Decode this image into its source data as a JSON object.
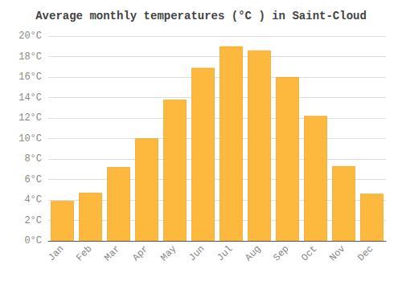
{
  "chart_data": {
    "type": "bar",
    "title": "Average monthly temperatures (°C ) in Saint-Cloud",
    "categories": [
      "Jan",
      "Feb",
      "Mar",
      "Apr",
      "May",
      "Jun",
      "Jul",
      "Aug",
      "Sep",
      "Oct",
      "Nov",
      "Dec"
    ],
    "values": [
      3.9,
      4.7,
      7.2,
      10.0,
      13.8,
      16.9,
      19.0,
      18.6,
      16.0,
      12.2,
      7.3,
      4.6
    ],
    "color": "#FDB93E",
    "ylim": [
      0,
      20
    ],
    "yticks": [
      {
        "value": 0,
        "label": "0°C"
      },
      {
        "value": 2,
        "label": "2°C"
      },
      {
        "value": 4,
        "label": "4°C"
      },
      {
        "value": 6,
        "label": "6°C"
      },
      {
        "value": 8,
        "label": "8°C"
      },
      {
        "value": 10,
        "label": "10°C"
      },
      {
        "value": 12,
        "label": "12°C"
      },
      {
        "value": 14,
        "label": "14°C"
      },
      {
        "value": 16,
        "label": "16°C"
      },
      {
        "value": 18,
        "label": "18°C"
      },
      {
        "value": 20,
        "label": "20°C"
      }
    ],
    "grid": true
  }
}
